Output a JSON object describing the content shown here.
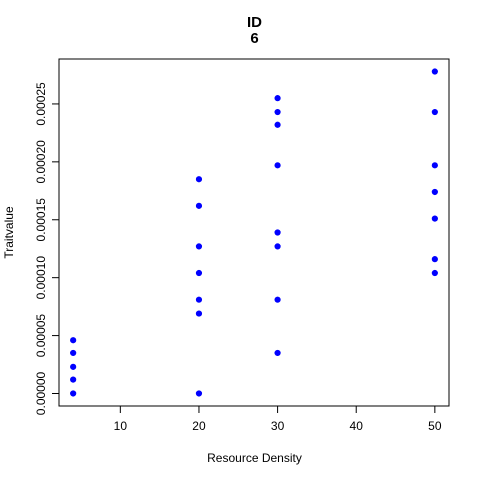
{
  "chart_data": {
    "type": "scatter",
    "title": "ID",
    "subtitle": "6",
    "xlabel": "Resource Density",
    "ylabel": "Traitvalue",
    "xlim": [
      2.2,
      51.8
    ],
    "ylim": [
      -1.08e-05,
      0.0002888
    ],
    "x_ticks": [
      10,
      20,
      30,
      40,
      50
    ],
    "x_tick_labels": [
      "10",
      "20",
      "30",
      "40",
      "50"
    ],
    "y_ticks": [
      0,
      5e-05,
      0.0001,
      0.00015,
      0.0002,
      0.00025
    ],
    "y_tick_labels": [
      "0.00000",
      "0.00005",
      "0.00010",
      "0.00015",
      "0.00020",
      "0.00025"
    ],
    "grid": false,
    "point_color": "#0000ff",
    "points": [
      {
        "x": 4,
        "y": 4.6e-05
      },
      {
        "x": 4,
        "y": 3.5e-05
      },
      {
        "x": 4,
        "y": 2.3e-05
      },
      {
        "x": 4,
        "y": 1.2e-05
      },
      {
        "x": 4,
        "y": 0.0
      },
      {
        "x": 20,
        "y": 0.000185
      },
      {
        "x": 20,
        "y": 0.000162
      },
      {
        "x": 20,
        "y": 0.000127
      },
      {
        "x": 20,
        "y": 0.000104
      },
      {
        "x": 20,
        "y": 8.1e-05
      },
      {
        "x": 20,
        "y": 6.9e-05
      },
      {
        "x": 20,
        "y": 0.0
      },
      {
        "x": 30,
        "y": 0.000255
      },
      {
        "x": 30,
        "y": 0.000243
      },
      {
        "x": 30,
        "y": 0.000232
      },
      {
        "x": 30,
        "y": 0.000197
      },
      {
        "x": 30,
        "y": 0.000139
      },
      {
        "x": 30,
        "y": 0.000127
      },
      {
        "x": 30,
        "y": 8.1e-05
      },
      {
        "x": 30,
        "y": 3.5e-05
      },
      {
        "x": 50,
        "y": 0.000278
      },
      {
        "x": 50,
        "y": 0.000243
      },
      {
        "x": 50,
        "y": 0.000197
      },
      {
        "x": 50,
        "y": 0.000174
      },
      {
        "x": 50,
        "y": 0.000151
      },
      {
        "x": 50,
        "y": 0.000116
      },
      {
        "x": 50,
        "y": 0.000104
      }
    ]
  }
}
